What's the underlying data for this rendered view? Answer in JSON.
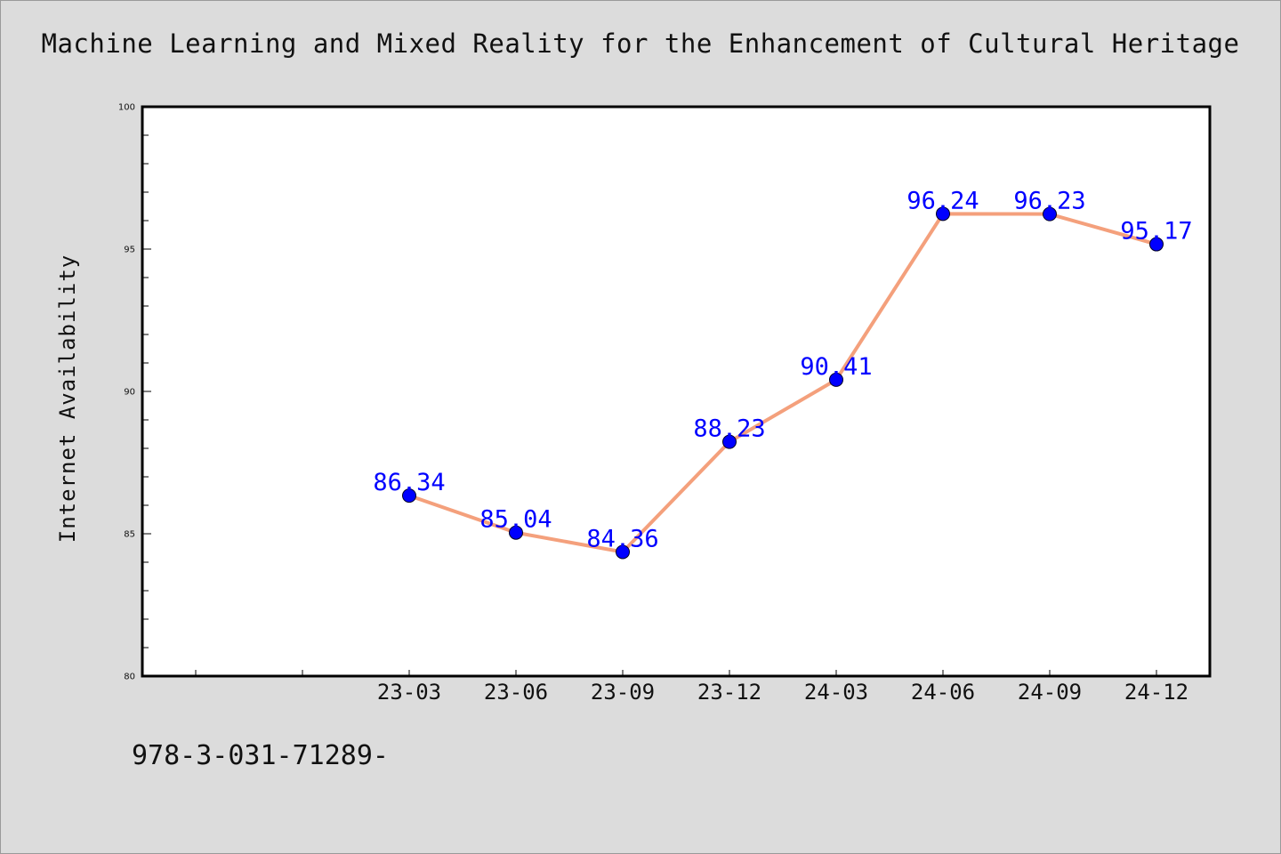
{
  "title": "Machine Learning and Mixed Reality for the Enhancement of Cultural Heritage",
  "footer_text": "978-3-031-71289-",
  "colors": {
    "background": "#dcdcdc",
    "plot_background": "#ffffff",
    "line": "#f4a07c",
    "marker": "#0000ff",
    "data_label": "#0000ff"
  },
  "chart_data": {
    "type": "line",
    "categories": [
      "23-03",
      "23-06",
      "23-09",
      "23-12",
      "24-03",
      "24-06",
      "24-09",
      "24-12"
    ],
    "series": [
      {
        "values": [
          86.34,
          85.04,
          84.36,
          88.23,
          90.41,
          96.24,
          96.23,
          95.17
        ]
      }
    ],
    "data_labels": [
      "86.34",
      "85.04",
      "84.36",
      "88.23",
      "90.41",
      "96.24",
      "96.23",
      "95.17"
    ],
    "title": "Machine Learning and Mixed Reality for the Enhancement of Cultural Heritage",
    "xlabel": "",
    "ylabel": "Internet Availability",
    "ylim": [
      80,
      100
    ],
    "yticks": [
      "80",
      "85",
      "90",
      "95",
      "100"
    ],
    "grid": false,
    "legend": "none"
  }
}
